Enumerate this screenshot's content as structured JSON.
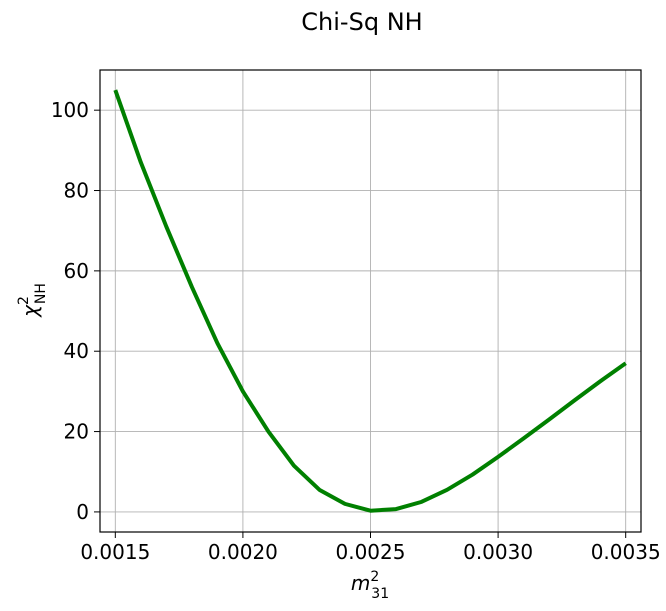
{
  "chart_data": {
    "type": "line",
    "title": "Chi-Sq NH",
    "xlabel": {
      "base": "m",
      "sup": "2",
      "sub": "31"
    },
    "ylabel": {
      "base": "χ",
      "sup": "2",
      "sub": "NH"
    },
    "xlim": [
      0.00144,
      0.00356
    ],
    "ylim": [
      -5,
      110
    ],
    "xticks": [
      0.0015,
      0.002,
      0.0025,
      0.003,
      0.0035
    ],
    "xtick_labels": [
      "0.0015",
      "0.0020",
      "0.0025",
      "0.0030",
      "0.0035"
    ],
    "yticks": [
      0,
      20,
      40,
      60,
      80,
      100
    ],
    "ytick_labels": [
      "0",
      "20",
      "40",
      "60",
      "80",
      "100"
    ],
    "grid": true,
    "series": [
      {
        "color": "#008000",
        "x": [
          0.0015,
          0.0016,
          0.0017,
          0.0018,
          0.0019,
          0.002,
          0.0021,
          0.0022,
          0.0023,
          0.0024,
          0.0025,
          0.0026,
          0.0027,
          0.0028,
          0.0029,
          0.003,
          0.0031,
          0.0032,
          0.0033,
          0.0034,
          0.0035
        ],
        "y": [
          105,
          87,
          71,
          56,
          42,
          30,
          20,
          11.5,
          5.5,
          2,
          0.3,
          0.7,
          2.5,
          5.5,
          9.3,
          13.7,
          18.3,
          23,
          27.8,
          32.5,
          37
        ]
      }
    ]
  }
}
